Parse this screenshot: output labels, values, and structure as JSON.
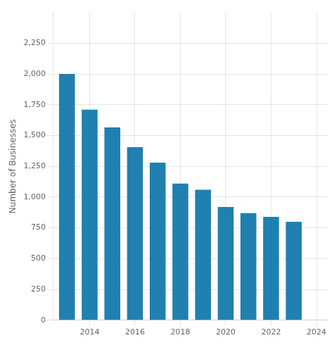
{
  "chart_data": {
    "type": "bar",
    "x": [
      2013,
      2014,
      2015,
      2016,
      2017,
      2018,
      2019,
      2020,
      2021,
      2022,
      2023
    ],
    "values": [
      2000,
      1710,
      1565,
      1405,
      1280,
      1110,
      1060,
      920,
      870,
      840,
      800
    ],
    "color": "#2080b0",
    "ylabel": "Number of Businesses",
    "xlim": [
      2012.4,
      2024.5
    ],
    "xticks": [
      2014,
      2016,
      2018,
      2020,
      2022,
      2024
    ],
    "ylim": [
      0,
      2500
    ],
    "yticks": [
      0,
      250,
      500,
      750,
      {
        "value": 1000,
        "label": "1,000"
      },
      {
        "value": 1250,
        "label": "1,250"
      },
      {
        "value": 1500,
        "label": "1,500"
      },
      {
        "value": 1750,
        "label": "1,750"
      },
      {
        "value": 2000,
        "label": "2,000"
      },
      {
        "value": 2250,
        "label": "2,250"
      }
    ],
    "grid": true
  }
}
